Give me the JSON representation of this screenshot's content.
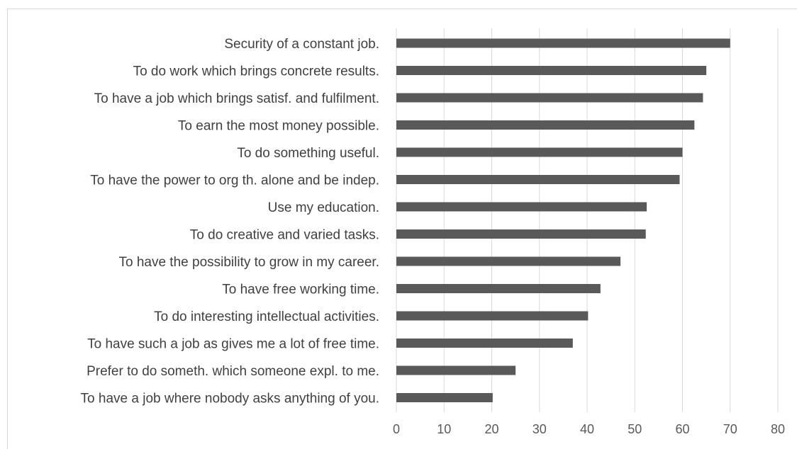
{
  "chart_data": {
    "type": "bar",
    "orientation": "horizontal",
    "categories": [
      "Security of a constant job.",
      "To do work which brings concrete results.",
      "To have a job which brings satisf. and fulfilment.",
      "To earn the most money possible.",
      "To do something useful.",
      "To have the power to org th. alone and be indep.",
      "Use my education.",
      "To do creative and varied tasks.",
      "To have the possibility to grow in my career.",
      "To have free working time.",
      "To do interesting intellectual activities.",
      "To have such a job as gives me a lot of free time.",
      "Prefer to do someth. which someone expl. to me.",
      "To have a job where nobody asks anything of you."
    ],
    "values": [
      70,
      65,
      64.3,
      62.5,
      60,
      59.4,
      52.5,
      52.3,
      47,
      42.8,
      40.2,
      37,
      25,
      20.2
    ],
    "xlim": [
      0,
      80
    ],
    "xticks": [
      "0",
      "10",
      "20",
      "30",
      "40",
      "50",
      "60",
      "70",
      "80"
    ],
    "grid": "vertical",
    "bar_color": "#595959",
    "grid_color": "#d9d9d9",
    "title": "",
    "xlabel": "",
    "ylabel": ""
  }
}
